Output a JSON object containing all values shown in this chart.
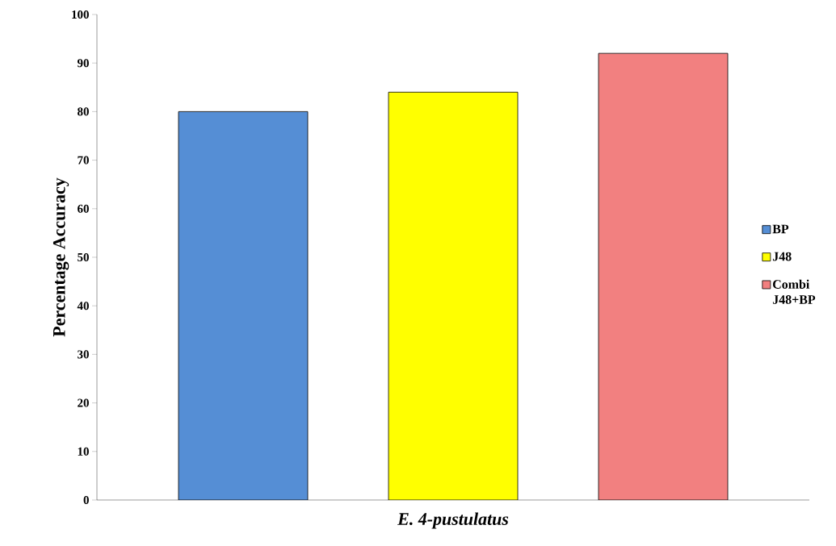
{
  "chart_data": {
    "type": "bar",
    "categories": [
      "*E. 4-pustulatus*"
    ],
    "ylabel": "Percentage Accuracy",
    "series": [
      {
        "name": "BP",
        "color": "#558ed5",
        "values": [
          80
        ]
      },
      {
        "name": "J48",
        "color": "#ffff00",
        "values": [
          84
        ]
      },
      {
        "name": "Combi J48+BP",
        "color": "#f28080",
        "values": [
          92
        ]
      }
    ],
    "ylim": [
      0,
      100
    ],
    "yticks": [
      0,
      10,
      20,
      30,
      40,
      50,
      60,
      70,
      80,
      90,
      100
    ],
    "grid": false,
    "legend": "right"
  }
}
